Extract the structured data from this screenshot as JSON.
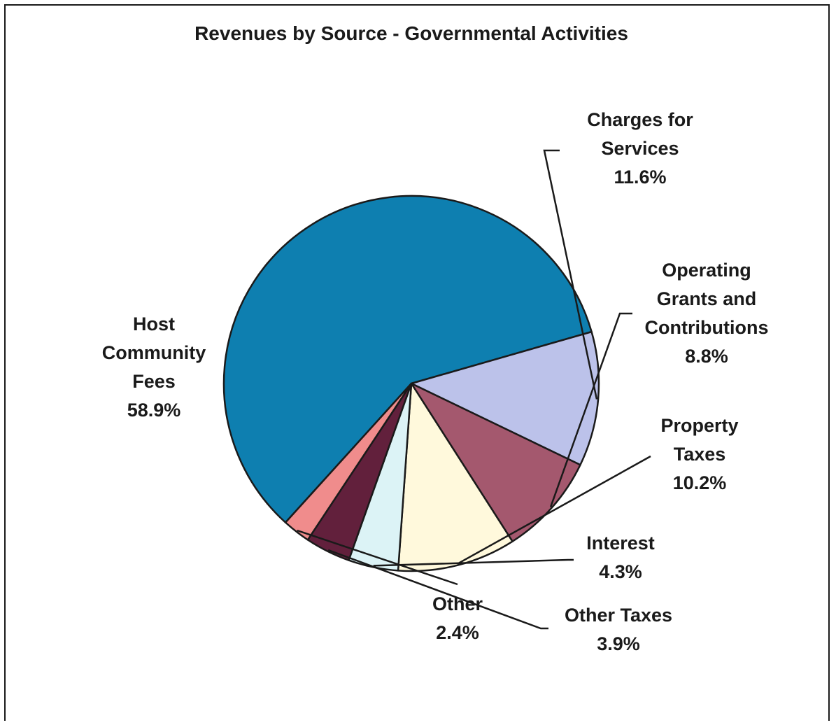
{
  "chart_data": {
    "type": "pie",
    "title": "Revenues by Source - Governmental Activities",
    "slices": [
      {
        "key": "host",
        "name": "Host Community Fees",
        "label_lines": [
          "Host",
          "Community",
          "Fees"
        ],
        "value_label": "58.9%",
        "value": 58.9,
        "color": "#0e7fb0"
      },
      {
        "key": "charges",
        "name": "Charges for Services",
        "label_lines": [
          "Charges for",
          "Services"
        ],
        "value_label": "11.6%",
        "value": 11.6,
        "color": "#bcc2ea"
      },
      {
        "key": "grants",
        "name": "Operating Grants and Contributions",
        "label_lines": [
          "Operating",
          "Grants and",
          "Contributions"
        ],
        "value_label": "8.8%",
        "value": 8.8,
        "color": "#a4586e"
      },
      {
        "key": "property",
        "name": "Property Taxes",
        "label_lines": [
          "Property",
          "Taxes"
        ],
        "value_label": "10.2%",
        "value": 10.2,
        "color": "#fff9dc"
      },
      {
        "key": "interest",
        "name": "Interest",
        "label_lines": [
          "Interest"
        ],
        "value_label": "4.3%",
        "value": 4.3,
        "color": "#dcf3f6"
      },
      {
        "key": "other_taxes",
        "name": "Other Taxes",
        "label_lines": [
          "Other Taxes"
        ],
        "value_label": "3.9%",
        "value": 3.9,
        "color": "#62203c"
      },
      {
        "key": "other",
        "name": "Other",
        "label_lines": [
          "Other"
        ],
        "value_label": "2.4%",
        "value": 2.4,
        "color": "#f08c8c"
      }
    ]
  }
}
